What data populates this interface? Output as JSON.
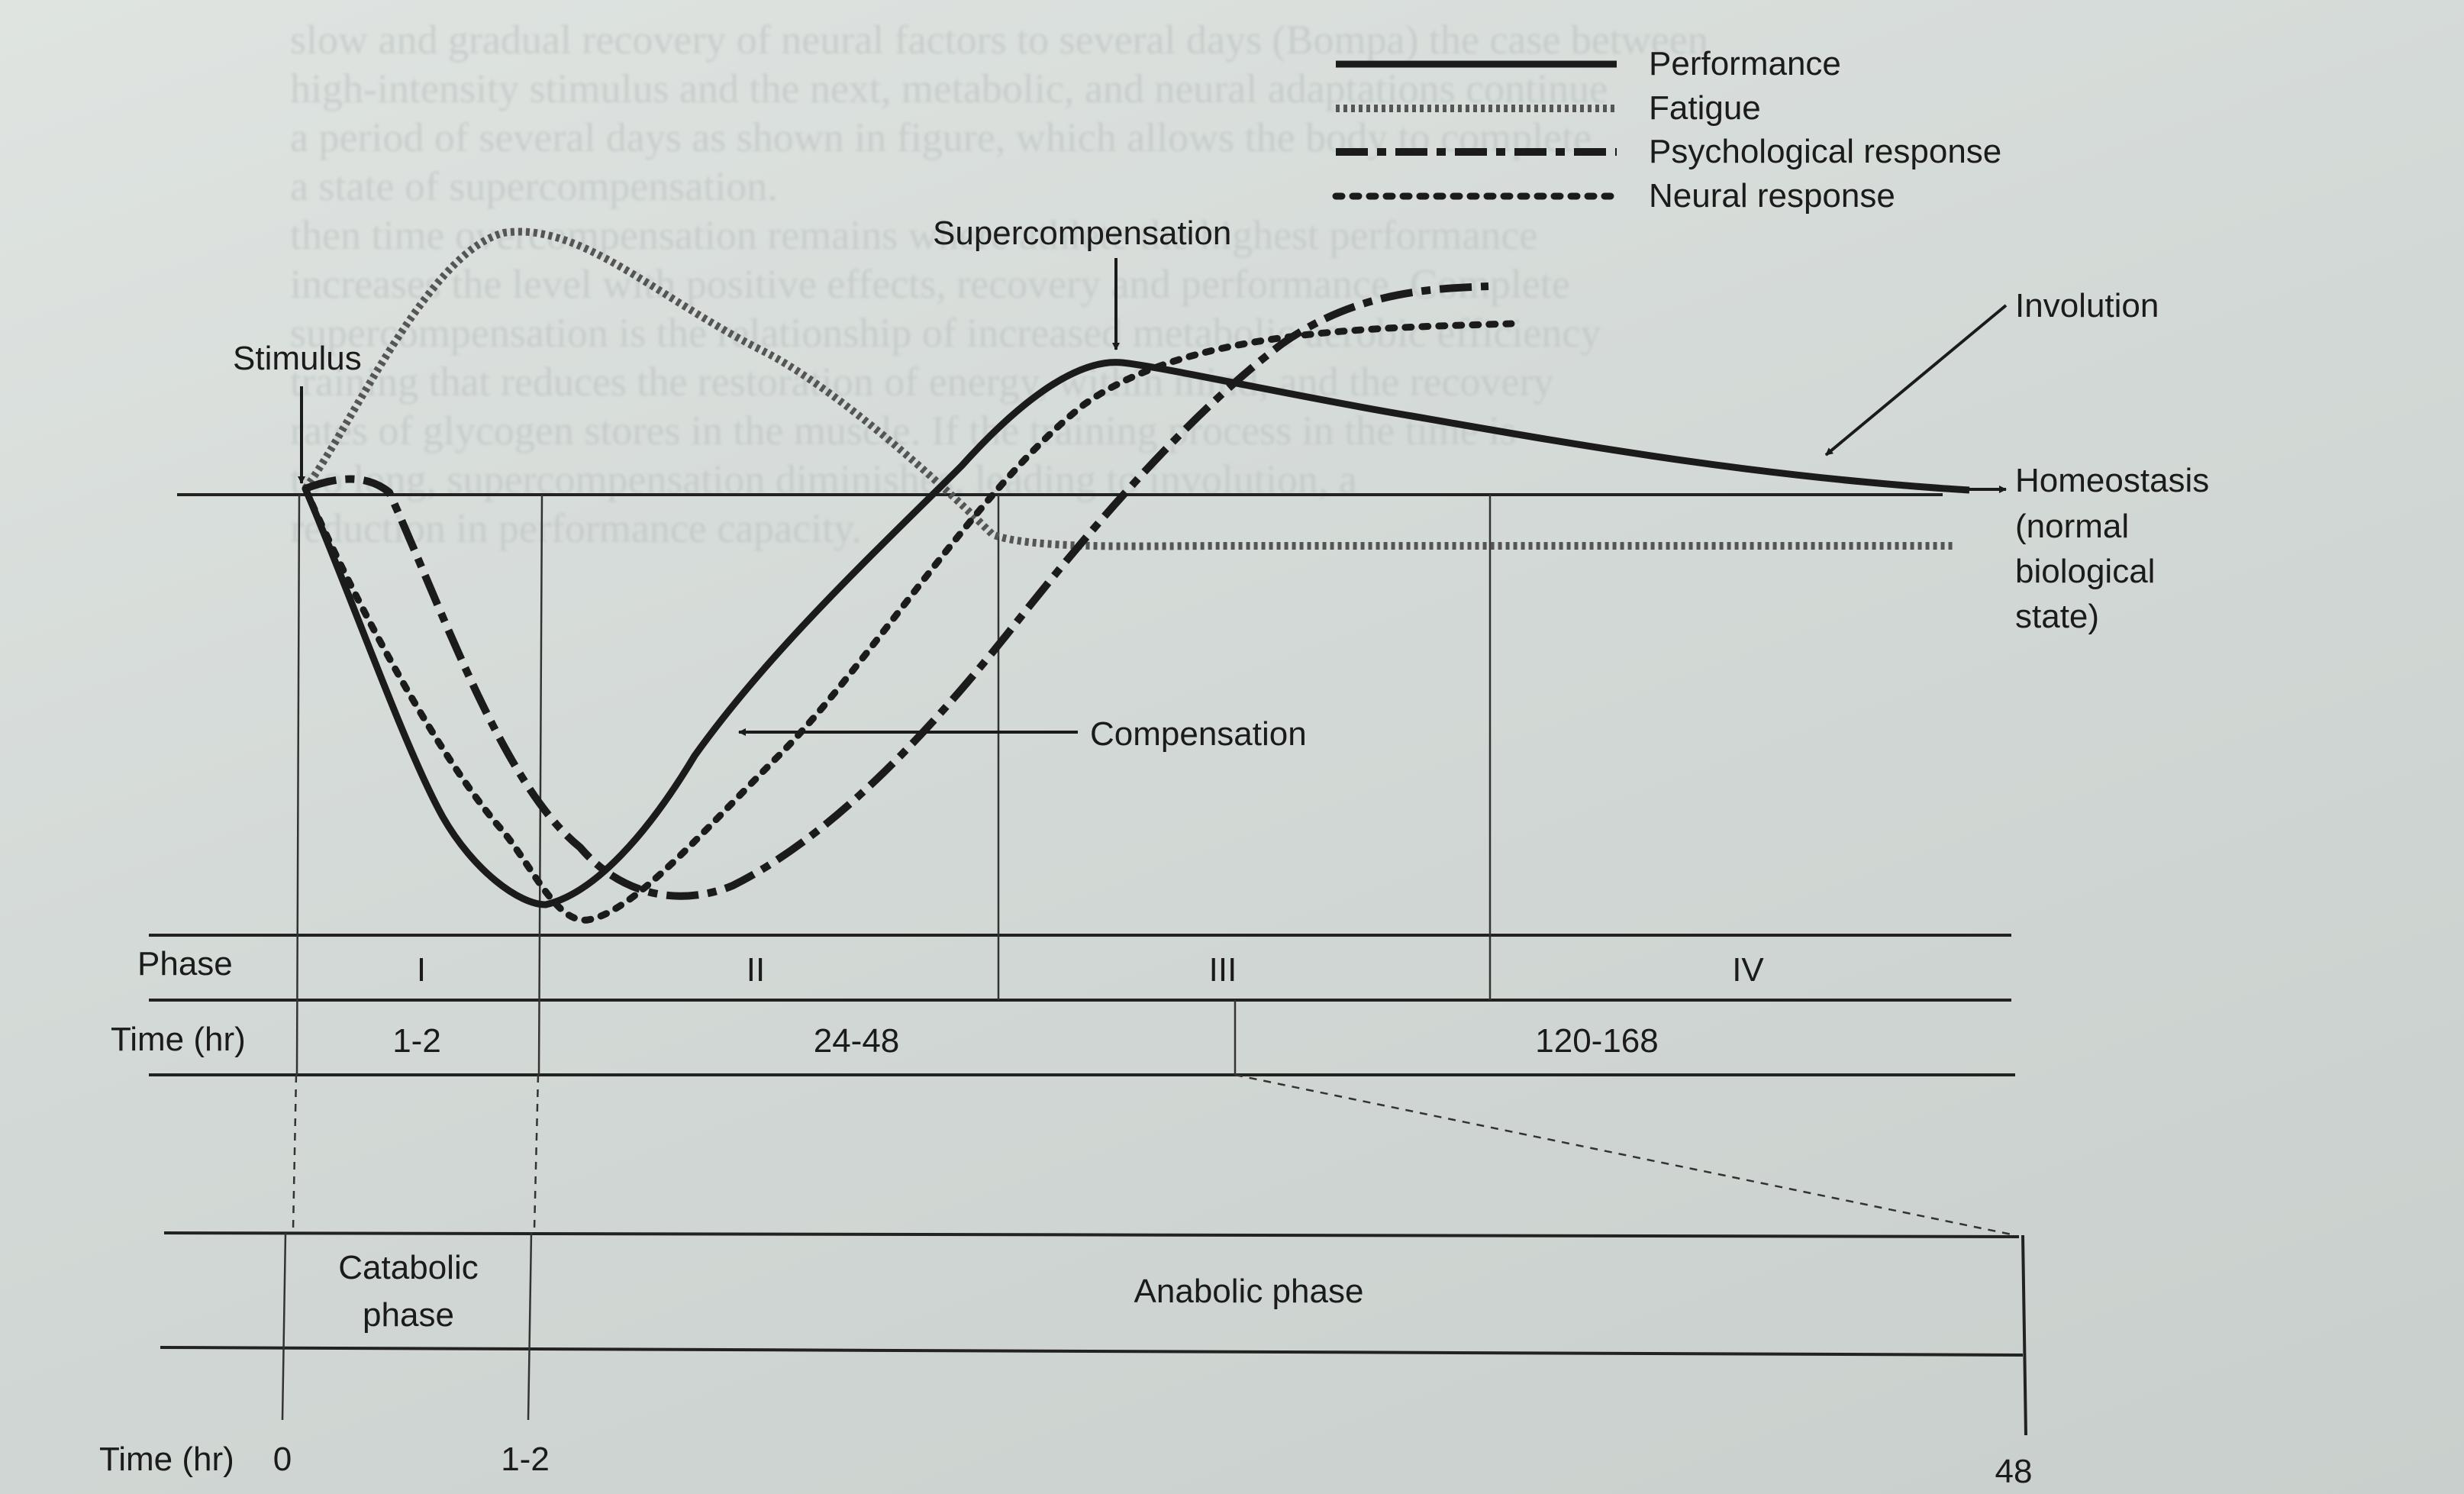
{
  "legend": {
    "performance": "Performance",
    "fatigue": "Fatigue",
    "psychological": "Psychological response",
    "neural": "Neural response"
  },
  "annotations": {
    "stimulus": "Stimulus",
    "supercompensation": "Supercompensation",
    "involution": "Involution",
    "compensation": "Compensation",
    "homeostasis": [
      "Homeostasis",
      "(normal",
      "biological",
      "state)"
    ]
  },
  "phase_row": {
    "label": "Phase",
    "phases": [
      "I",
      "II",
      "III",
      "IV"
    ]
  },
  "time_row": {
    "label": "Time (hr)",
    "values": [
      "1-2",
      "24-48",
      "120-168"
    ]
  },
  "metabolic_row": {
    "catabolic": [
      "Catabolic",
      "phase"
    ],
    "anabolic": "Anabolic phase"
  },
  "bottom_axis": {
    "label": "Time (hr)",
    "ticks": [
      "0",
      "1-2",
      "48"
    ]
  },
  "background_text": [
    "slow and gradual recovery of neural factors to several days (Bompa) the case between",
    "high-intensity stimulus and the next, metabolic, and neural adaptations continue",
    "a period of several days as shown in figure, which allows the body to complete",
    "a state of supercompensation.",
    "then time overcompensation remains where athlete the highest performance",
    "increases the level with positive effects, recovery and performance. Complete",
    "supercompensation is the relationship of increased metabolic aerobic efficiency",
    "training that reduces the restoration of energy, within mind, and the recovery",
    "rates of glycogen stores in the muscle. If the training process in the time is",
    "too long, supercompensation diminishes, leading to involution, a",
    "reduction in performance capacity."
  ],
  "colors": {
    "ink": "#1b1b1b",
    "fatigue": "#555555",
    "paper": "#d7dcd9"
  }
}
